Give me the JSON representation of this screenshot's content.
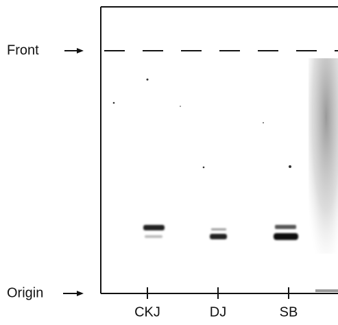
{
  "labels": {
    "front": "Front",
    "origin": "Origin"
  },
  "lanes": [
    "CKJ",
    "DJ",
    "SB"
  ]
}
